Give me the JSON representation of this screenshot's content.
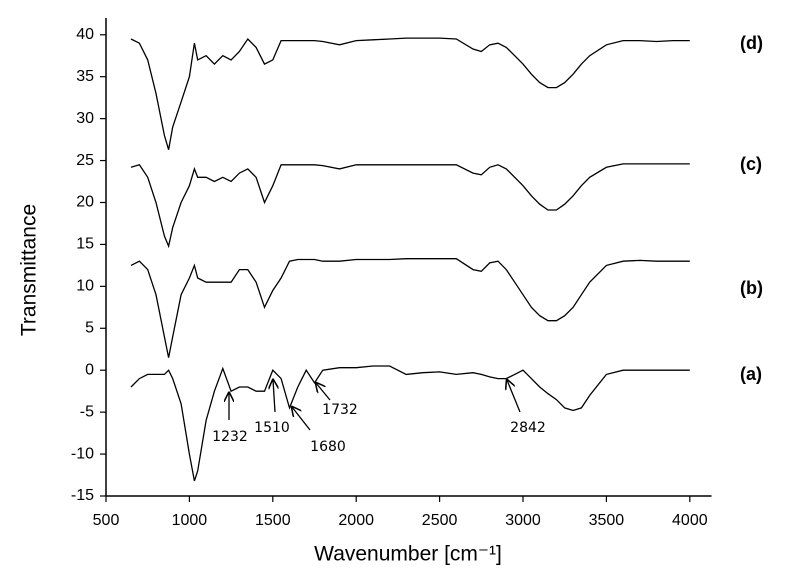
{
  "chart_data": {
    "type": "line",
    "xlabel": "Wavenumber [cm⁻¹]",
    "ylabel": "Transmittance",
    "x": [
      650,
      700,
      750,
      800,
      850,
      875,
      900,
      950,
      1000,
      1030,
      1050,
      1100,
      1150,
      1200,
      1250,
      1300,
      1350,
      1400,
      1450,
      1500,
      1550,
      1600,
      1650,
      1700,
      1750,
      1800,
      1900,
      2000,
      2100,
      2200,
      2300,
      2400,
      2500,
      2600,
      2700,
      2750,
      2800,
      2850,
      2900,
      2950,
      3000,
      3050,
      3100,
      3150,
      3200,
      3250,
      3300,
      3350,
      3400,
      3500,
      3600,
      3700,
      3800,
      3900,
      4000
    ],
    "series": [
      {
        "name": "(a)",
        "color": "#000000",
        "values": [
          -2,
          -1,
          -0.5,
          -0.5,
          -0.5,
          0,
          -1,
          -4,
          -10,
          -13.2,
          -12,
          -6,
          -2.5,
          0.2,
          -2.5,
          -2,
          -2,
          -2.5,
          -2.5,
          0,
          -1,
          -4.5,
          -2,
          0,
          -1.5,
          0,
          0.3,
          0.3,
          0.5,
          0.5,
          -0.5,
          -0.3,
          -0.2,
          -0.5,
          -0.3,
          -0.5,
          -0.8,
          -1,
          -1,
          -0.5,
          0,
          -1,
          -2,
          -2.8,
          -3.5,
          -4.5,
          -4.8,
          -4.5,
          -3,
          -0.5,
          0,
          0,
          0,
          0,
          0
        ]
      },
      {
        "name": "(b)",
        "color": "#000000",
        "values": [
          12.5,
          13,
          12,
          9,
          4,
          1.5,
          4,
          9,
          11,
          12.5,
          11,
          10.5,
          10.5,
          10.5,
          10.5,
          12,
          12,
          10.5,
          7.5,
          9.5,
          11,
          13,
          13.2,
          13.2,
          13.2,
          13,
          13,
          13.2,
          13.2,
          13.2,
          13.3,
          13.3,
          13.3,
          13.3,
          12,
          11.8,
          12.8,
          13,
          12,
          10.5,
          9,
          7.5,
          6.5,
          5.9,
          5.9,
          6.5,
          7.5,
          9,
          10.5,
          12.5,
          13,
          13.1,
          13,
          13,
          13
        ]
      },
      {
        "name": "(c)",
        "color": "#000000",
        "values": [
          24.2,
          24.5,
          23,
          20,
          16,
          14.8,
          17,
          20,
          22,
          24,
          23,
          23,
          22.5,
          23,
          22.5,
          23.5,
          24,
          23,
          20,
          22,
          24.5,
          24.5,
          24.5,
          24.5,
          24.5,
          24.4,
          24,
          24.5,
          24.5,
          24.5,
          24.5,
          24.5,
          24.5,
          24.5,
          23.5,
          23.3,
          24.2,
          24.5,
          24,
          23,
          22,
          20.8,
          19.8,
          19.1,
          19.1,
          19.8,
          20.8,
          22,
          23,
          24.2,
          24.6,
          24.6,
          24.6,
          24.6,
          24.6
        ]
      },
      {
        "name": "(d)",
        "color": "#000000",
        "values": [
          39.5,
          39,
          37,
          33,
          28,
          26.3,
          29,
          32,
          35,
          39,
          37,
          37.5,
          36.5,
          37.5,
          37,
          38,
          39.5,
          38.5,
          36.5,
          37,
          39.3,
          39.3,
          39.3,
          39.3,
          39.3,
          39.2,
          38.8,
          39.3,
          39.4,
          39.5,
          39.6,
          39.6,
          39.6,
          39.5,
          38.3,
          38,
          38.8,
          39,
          38.5,
          37.5,
          36.5,
          35.3,
          34.3,
          33.7,
          33.7,
          34.3,
          35.3,
          36.5,
          37.5,
          38.8,
          39.3,
          39.3,
          39.2,
          39.3,
          39.3
        ]
      }
    ],
    "annotations": [
      "1232",
      "1510",
      "1680",
      "1732",
      "2842"
    ],
    "xlim": [
      500,
      4130
    ],
    "xticks": [
      500,
      1000,
      1500,
      2000,
      2500,
      3000,
      3500,
      4000
    ],
    "ylim": [
      -15,
      42
    ],
    "yticks": [
      -15,
      -10,
      -5,
      0,
      5,
      10,
      15,
      20,
      25,
      30,
      35,
      40
    ],
    "grid": false
  }
}
